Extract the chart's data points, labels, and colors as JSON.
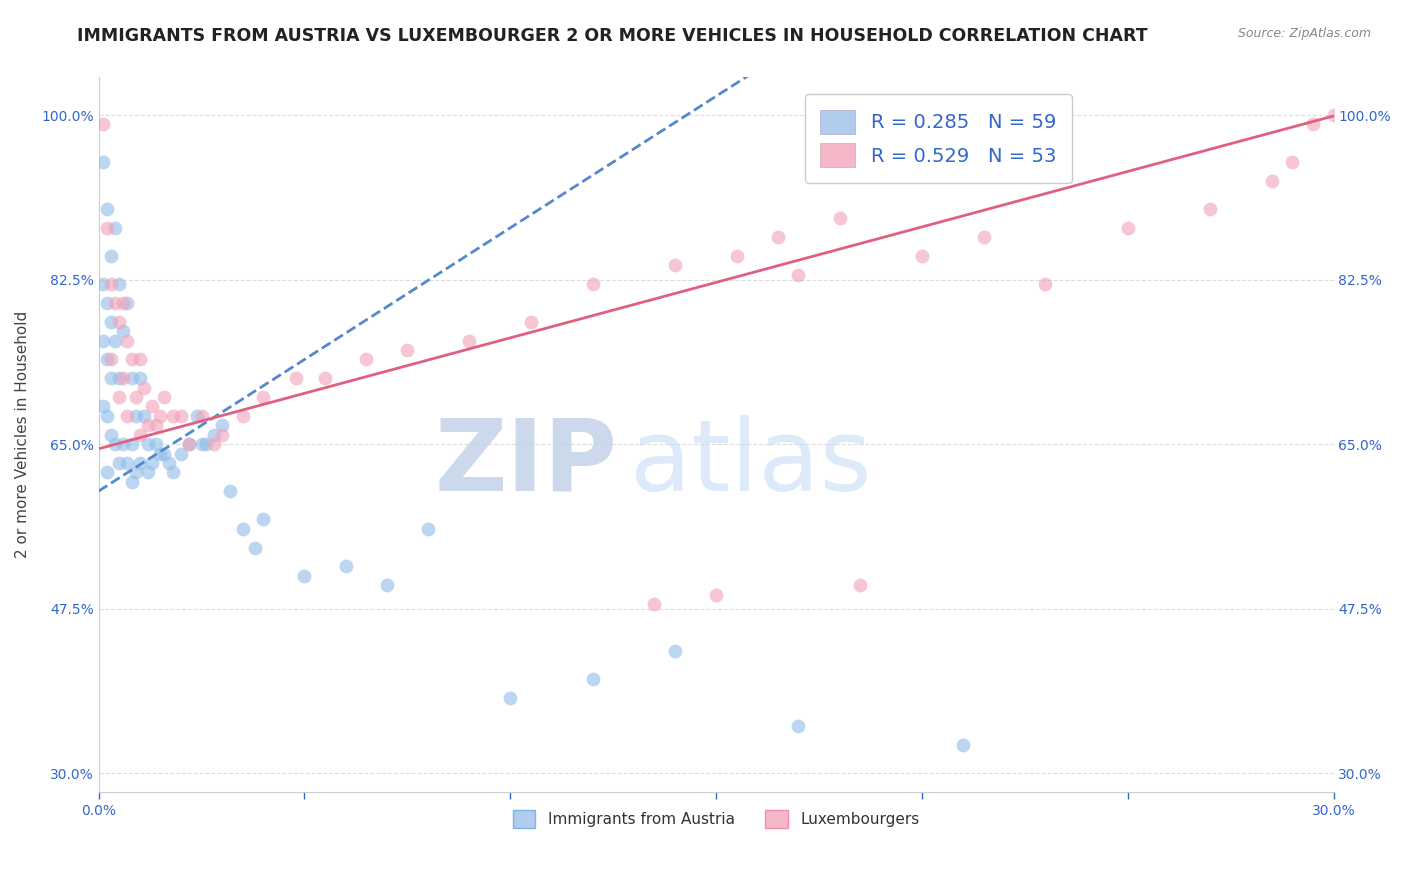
{
  "title": "IMMIGRANTS FROM AUSTRIA VS LUXEMBOURGER 2 OR MORE VEHICLES IN HOUSEHOLD CORRELATION CHART",
  "source": "Source: ZipAtlas.com",
  "ylabel": "2 or more Vehicles in Household",
  "xlim": [
    0.0,
    0.3
  ],
  "ylim": [
    0.28,
    1.04
  ],
  "xticks": [
    0.0,
    0.05,
    0.1,
    0.15,
    0.2,
    0.25,
    0.3
  ],
  "xticklabels": [
    "0.0%",
    "",
    "",
    "",
    "",
    "",
    "30.0%"
  ],
  "yticks": [
    0.3,
    0.475,
    0.65,
    0.825,
    1.0
  ],
  "yticklabels": [
    "30.0%",
    "47.5%",
    "65.0%",
    "82.5%",
    "100.0%"
  ],
  "austria_color": "#90bce8",
  "luxembourg_color": "#f0a0b8",
  "austria_line_color": "#5588cc",
  "luxembourg_line_color": "#e06080",
  "dot_alpha": 0.6,
  "dot_size": 100,
  "background_color": "#ffffff",
  "grid_color": "#dddddd",
  "title_fontsize": 12.5,
  "axis_label_fontsize": 11,
  "tick_fontsize": 10,
  "watermark_zip_color": "#c0d0e8",
  "watermark_atlas_color": "#c8ddf5",
  "legend_patch_austria": "#b0ccee",
  "legend_patch_luxembourg": "#f4b8c8",
  "austria_line_slope": 2.8,
  "austria_line_intercept": 0.6,
  "luxembourg_line_slope": 1.18,
  "luxembourg_line_intercept": 0.645,
  "austria_x": [
    0.001,
    0.001,
    0.001,
    0.001,
    0.002,
    0.002,
    0.002,
    0.002,
    0.002,
    0.003,
    0.003,
    0.003,
    0.003,
    0.004,
    0.004,
    0.004,
    0.005,
    0.005,
    0.005,
    0.006,
    0.006,
    0.007,
    0.007,
    0.008,
    0.008,
    0.008,
    0.009,
    0.009,
    0.01,
    0.01,
    0.011,
    0.012,
    0.012,
    0.013,
    0.014,
    0.015,
    0.016,
    0.017,
    0.018,
    0.02,
    0.022,
    0.024,
    0.025,
    0.026,
    0.028,
    0.03,
    0.032,
    0.035,
    0.038,
    0.04,
    0.05,
    0.06,
    0.07,
    0.08,
    0.1,
    0.12,
    0.14,
    0.17,
    0.21
  ],
  "austria_y": [
    0.95,
    0.82,
    0.76,
    0.69,
    0.9,
    0.8,
    0.74,
    0.68,
    0.62,
    0.85,
    0.78,
    0.72,
    0.66,
    0.88,
    0.76,
    0.65,
    0.82,
    0.72,
    0.63,
    0.77,
    0.65,
    0.8,
    0.63,
    0.72,
    0.65,
    0.61,
    0.68,
    0.62,
    0.72,
    0.63,
    0.68,
    0.65,
    0.62,
    0.63,
    0.65,
    0.64,
    0.64,
    0.63,
    0.62,
    0.64,
    0.65,
    0.68,
    0.65,
    0.65,
    0.66,
    0.67,
    0.6,
    0.56,
    0.54,
    0.57,
    0.51,
    0.52,
    0.5,
    0.56,
    0.38,
    0.4,
    0.43,
    0.35,
    0.33
  ],
  "luxembourg_x": [
    0.001,
    0.002,
    0.003,
    0.003,
    0.004,
    0.005,
    0.005,
    0.006,
    0.006,
    0.007,
    0.007,
    0.008,
    0.009,
    0.01,
    0.01,
    0.011,
    0.012,
    0.013,
    0.014,
    0.015,
    0.016,
    0.018,
    0.02,
    0.022,
    0.025,
    0.028,
    0.03,
    0.035,
    0.04,
    0.048,
    0.055,
    0.065,
    0.075,
    0.09,
    0.105,
    0.12,
    0.14,
    0.155,
    0.165,
    0.18,
    0.2,
    0.215,
    0.23,
    0.25,
    0.27,
    0.285,
    0.29,
    0.295,
    0.3,
    0.135,
    0.15,
    0.17,
    0.185
  ],
  "luxembourg_y": [
    0.99,
    0.88,
    0.82,
    0.74,
    0.8,
    0.78,
    0.7,
    0.8,
    0.72,
    0.76,
    0.68,
    0.74,
    0.7,
    0.74,
    0.66,
    0.71,
    0.67,
    0.69,
    0.67,
    0.68,
    0.7,
    0.68,
    0.68,
    0.65,
    0.68,
    0.65,
    0.66,
    0.68,
    0.7,
    0.72,
    0.72,
    0.74,
    0.75,
    0.76,
    0.78,
    0.82,
    0.84,
    0.85,
    0.87,
    0.89,
    0.85,
    0.87,
    0.82,
    0.88,
    0.9,
    0.93,
    0.95,
    0.99,
    1.0,
    0.48,
    0.49,
    0.83,
    0.5
  ]
}
